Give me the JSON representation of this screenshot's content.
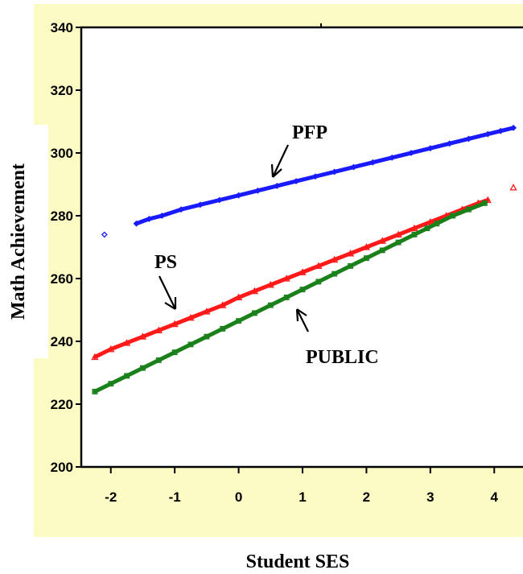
{
  "chart_data": {
    "type": "scatter",
    "xlabel": "Student SES",
    "ylabel": "Math Achievement",
    "xlim": [
      -2.45,
      4.45
    ],
    "ylim": [
      200,
      340
    ],
    "xticks": [
      "-2",
      "-1",
      "0",
      "1",
      "2",
      "3",
      "4"
    ],
    "yticks": [
      "200",
      "220",
      "240",
      "260",
      "280",
      "300",
      "320",
      "340"
    ],
    "grid": false,
    "legend": "none",
    "colors": {
      "panel": "#fdfbc4",
      "plot_area": "#ffffff"
    },
    "series": [
      {
        "name": "PFP",
        "color": "#1a1aff",
        "marker": "diamond",
        "x": [
          -2.1,
          -1.6,
          -1.4,
          -1.2,
          -0.9,
          -0.6,
          -0.3,
          0.0,
          0.3,
          0.6,
          0.9,
          1.2,
          1.5,
          1.8,
          2.1,
          2.4,
          2.7,
          3.0,
          3.3,
          3.6,
          3.9,
          4.1,
          4.3
        ],
        "y": [
          274,
          277.5,
          279,
          280,
          282,
          283.5,
          285,
          286.5,
          288,
          289.5,
          291,
          292.5,
          294,
          295.5,
          297,
          298.5,
          300,
          301.5,
          303,
          304.5,
          306,
          307,
          308
        ]
      },
      {
        "name": "PS",
        "color": "#ff1a1a",
        "marker": "triangle",
        "x": [
          -2.25,
          -2.0,
          -1.75,
          -1.5,
          -1.25,
          -1.0,
          -0.75,
          -0.5,
          -0.25,
          0.0,
          0.25,
          0.5,
          0.75,
          1.0,
          1.25,
          1.5,
          1.75,
          2.0,
          2.25,
          2.5,
          2.75,
          3.0,
          3.25,
          3.5,
          3.75,
          3.9,
          4.3
        ],
        "y": [
          235,
          237.5,
          239.5,
          241.5,
          243.5,
          245.5,
          247.5,
          249.5,
          251.5,
          254,
          256,
          258,
          260,
          262,
          264,
          266,
          268,
          270,
          272,
          274,
          276,
          278,
          280,
          282,
          284,
          285,
          289
        ]
      },
      {
        "name": "PUBLIC",
        "color": "#1a801a",
        "marker": "square",
        "x": [
          -2.25,
          -2.0,
          -1.75,
          -1.5,
          -1.25,
          -1.0,
          -0.75,
          -0.5,
          -0.25,
          0.0,
          0.25,
          0.5,
          0.75,
          1.0,
          1.25,
          1.5,
          1.75,
          2.0,
          2.25,
          2.5,
          2.75,
          2.95,
          3.1,
          3.35,
          3.6,
          3.85
        ],
        "y": [
          224,
          226.5,
          229,
          231.5,
          234,
          236.5,
          239,
          241.5,
          244,
          246.5,
          249,
          251.5,
          254,
          256.5,
          259,
          261.5,
          264,
          266.5,
          269,
          271.5,
          274,
          276,
          277.5,
          280,
          282,
          284
        ]
      }
    ],
    "annotations": [
      "PFP",
      "PS",
      "PUBLIC"
    ]
  }
}
